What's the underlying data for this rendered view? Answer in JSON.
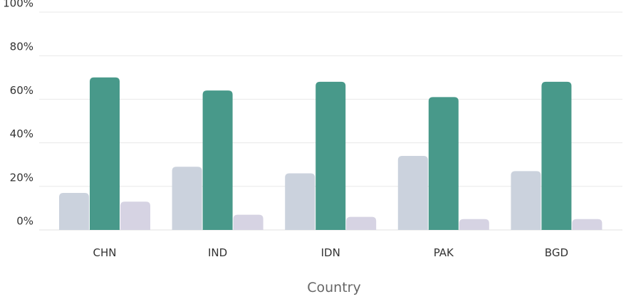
{
  "chart_data": {
    "type": "bar",
    "categories": [
      "CHN",
      "IND",
      "IDN",
      "PAK",
      "BGD"
    ],
    "series": [
      {
        "values": [
          17,
          29,
          26,
          34,
          27
        ],
        "color": "#cbd2dd"
      },
      {
        "values": [
          70,
          64,
          68,
          61,
          68
        ],
        "color": "#48998a"
      },
      {
        "values": [
          13,
          7,
          6,
          5,
          5
        ],
        "color": "#d6d3e3"
      }
    ],
    "title": "",
    "xlabel": "Country",
    "ylabel": "",
    "ylim": [
      0,
      100
    ],
    "yticks": [
      0,
      20,
      40,
      60,
      80,
      100
    ],
    "ytick_labels": [
      "0%",
      "20%",
      "40%",
      "60%",
      "80%",
      "100%"
    ],
    "grid": true,
    "legend": "none"
  }
}
